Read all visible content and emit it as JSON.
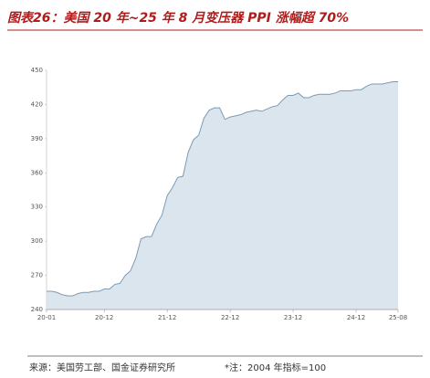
{
  "chart_data": {
    "type": "area",
    "title": "图表26：美国 20 年~25 年 8 月变压器 PPI 涨幅超 70%",
    "source": "来源：美国劳工部、国金证券研究所",
    "note": "*注：2004 年指标=100",
    "categories": [
      "20-01",
      null,
      null,
      null,
      null,
      null,
      null,
      null,
      null,
      null,
      null,
      "20-12",
      null,
      null,
      null,
      null,
      null,
      null,
      null,
      null,
      null,
      null,
      null,
      "21-12",
      null,
      null,
      null,
      null,
      null,
      null,
      null,
      null,
      null,
      null,
      null,
      "22-12",
      null,
      null,
      null,
      null,
      null,
      null,
      null,
      null,
      null,
      null,
      null,
      "23-12",
      null,
      null,
      null,
      null,
      null,
      null,
      null,
      null,
      null,
      null,
      null,
      "24-12",
      null,
      null,
      null,
      null,
      null,
      null,
      null,
      "25-08"
    ],
    "values": [
      256,
      256,
      255,
      253,
      252,
      252,
      254,
      255,
      255,
      256,
      256,
      258,
      258,
      262,
      263,
      270,
      274,
      285,
      302,
      304,
      304,
      315,
      323,
      340,
      347,
      356,
      357,
      378,
      389,
      393,
      408,
      415,
      417,
      417,
      407,
      409,
      410,
      411,
      413,
      414,
      415,
      414,
      416,
      418,
      419,
      424,
      428,
      428,
      430,
      426,
      426,
      428,
      429,
      429,
      429,
      430,
      432,
      432,
      432,
      433,
      433,
      436,
      438,
      438,
      438,
      439,
      440,
      440
    ],
    "color": "#dbe5ee",
    "line_color": "#7d9ab3",
    "ylim": [
      240,
      450
    ],
    "yticks": [
      240,
      270,
      300,
      330,
      360,
      390,
      420,
      450
    ],
    "grid": false
  }
}
